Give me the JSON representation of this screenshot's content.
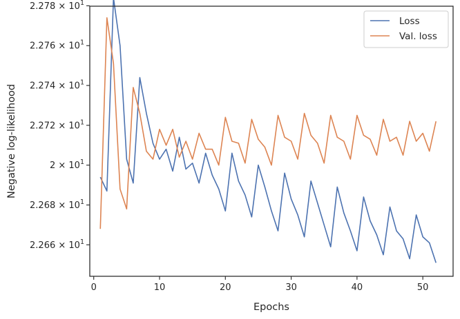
{
  "chart_data": {
    "type": "line",
    "title": "",
    "xlabel": "Epochs",
    "ylabel": "Negative log-likelihood",
    "xlim": [
      -0.6,
      54.6
    ],
    "ylim": [
      22.6442,
      22.7798
    ],
    "xticks": [
      0,
      10,
      20,
      30,
      40,
      50
    ],
    "yticks": [
      {
        "value": 22.66,
        "mantissa": "2.266",
        "times": "×",
        "base": "10",
        "exp": "1"
      },
      {
        "value": 22.68,
        "mantissa": "2.268",
        "times": "×",
        "base": "10",
        "exp": "1"
      },
      {
        "value": 22.7,
        "mantissa": "2",
        "times": "×",
        "base": "10",
        "exp": "1"
      },
      {
        "value": 22.72,
        "mantissa": "2.272",
        "times": "×",
        "base": "10",
        "exp": "1"
      },
      {
        "value": 22.74,
        "mantissa": "2.274",
        "times": "×",
        "base": "10",
        "exp": "1"
      },
      {
        "value": 22.76,
        "mantissa": "2.276",
        "times": "×",
        "base": "10",
        "exp": "1"
      },
      {
        "value": 22.78,
        "mantissa": "2.278",
        "times": "×",
        "base": "10",
        "exp": "1"
      }
    ],
    "grid": false,
    "legend_position": "top-right",
    "x": [
      1,
      2,
      3,
      4,
      5,
      6,
      7,
      8,
      9,
      10,
      11,
      12,
      13,
      14,
      15,
      16,
      17,
      18,
      19,
      20,
      21,
      22,
      23,
      24,
      25,
      26,
      27,
      28,
      29,
      30,
      31,
      32,
      33,
      34,
      35,
      36,
      37,
      38,
      39,
      40,
      41,
      42,
      43,
      44,
      45,
      46,
      47,
      48,
      49,
      50,
      51,
      52
    ],
    "series": [
      {
        "name": "Loss",
        "color": "#4c72b0",
        "values": [
          22.694,
          22.687,
          22.784,
          22.76,
          22.703,
          22.691,
          22.744,
          22.726,
          22.711,
          22.703,
          22.708,
          22.697,
          22.714,
          22.698,
          22.701,
          22.691,
          22.706,
          22.695,
          22.688,
          22.677,
          22.706,
          22.692,
          22.685,
          22.674,
          22.7,
          22.689,
          22.677,
          22.667,
          22.696,
          22.683,
          22.675,
          22.664,
          22.692,
          22.681,
          22.67,
          22.659,
          22.689,
          22.676,
          22.667,
          22.657,
          22.684,
          22.672,
          22.665,
          22.655,
          22.679,
          22.667,
          22.663,
          22.653,
          22.675,
          22.664,
          22.661,
          22.651
        ]
      },
      {
        "name": "Val. loss",
        "color": "#dd8452",
        "values": [
          22.668,
          22.774,
          22.751,
          22.688,
          22.678,
          22.739,
          22.726,
          22.707,
          22.703,
          22.718,
          22.71,
          22.718,
          22.704,
          22.712,
          22.703,
          22.716,
          22.708,
          22.708,
          22.7,
          22.724,
          22.712,
          22.711,
          22.701,
          22.723,
          22.713,
          22.709,
          22.7,
          22.725,
          22.714,
          22.712,
          22.703,
          22.726,
          22.715,
          22.711,
          22.701,
          22.725,
          22.714,
          22.712,
          22.703,
          22.725,
          22.715,
          22.713,
          22.705,
          22.723,
          22.712,
          22.714,
          22.705,
          22.722,
          22.712,
          22.716,
          22.707,
          22.722
        ]
      }
    ]
  }
}
